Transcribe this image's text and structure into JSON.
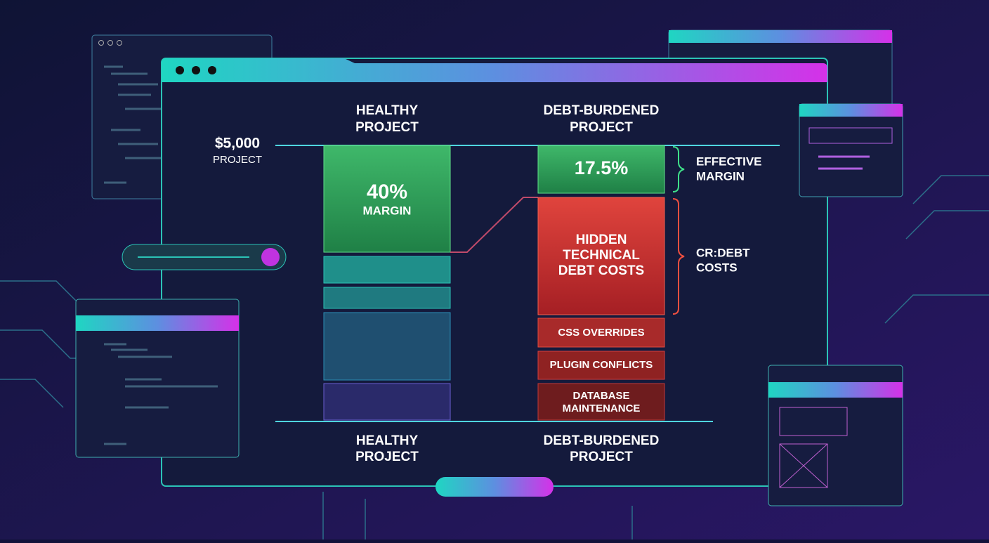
{
  "columns": [
    {
      "title": [
        "HEALTHY",
        "PROJECT"
      ],
      "footer": [
        "HEALTHY",
        "PROJECT"
      ]
    },
    {
      "title": [
        "DEBT-BURDENED",
        "PROJECT"
      ],
      "footer": [
        "DEBT-BURDENED",
        "PROJECT"
      ]
    }
  ],
  "budget": {
    "amount": "$5,000",
    "label": "PROJECT"
  },
  "healthy": {
    "margin": "40%",
    "margin_label": "MARGIN"
  },
  "debt": {
    "margin": "17.5%",
    "hidden": [
      "HIDDEN",
      "TECHNICAL",
      "DEBT COSTS"
    ],
    "items": [
      [
        "CSS OVERRIDES"
      ],
      [
        "PLUGIN CONFLICTS"
      ],
      [
        "DATABASE",
        "MAINTENANCE"
      ]
    ]
  },
  "annotations": [
    [
      "EFFECTIVE",
      "MARGIN"
    ],
    [
      "CR:DEBT",
      "COSTS"
    ]
  ]
}
